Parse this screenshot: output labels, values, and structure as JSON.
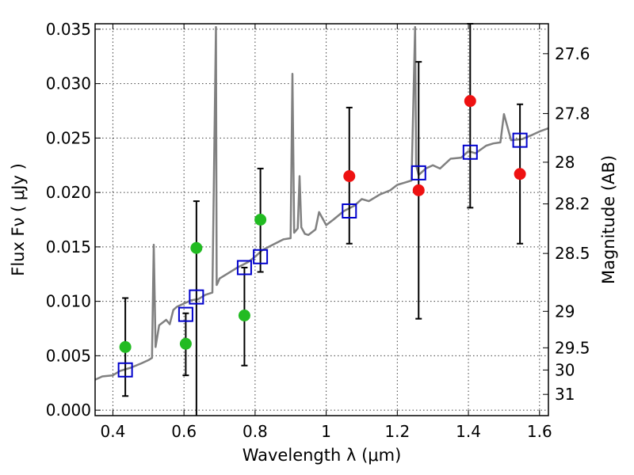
{
  "chart_data": {
    "type": "scatter",
    "xlabel": "Wavelength  λ (μm)",
    "ylabel": "Flux  Fν  ( μJy )",
    "ylabel_right": "Magnitude (AB)",
    "xlim": [
      0.35,
      1.625
    ],
    "ylim": [
      -0.0005,
      0.0355
    ],
    "x_ticks": [
      0.4,
      0.6,
      0.8,
      1.0,
      1.2,
      1.4,
      1.6
    ],
    "x_tick_labels": [
      "0.4",
      "0.6",
      "0.8",
      "1",
      "1.2",
      "1.4",
      "1.6"
    ],
    "y_ticks": [
      0.0,
      0.005,
      0.01,
      0.015,
      0.02,
      0.025,
      0.03,
      0.035
    ],
    "y_tick_labels": [
      "0.000",
      "0.005",
      "0.010",
      "0.015",
      "0.020",
      "0.025",
      "0.030",
      "0.035"
    ],
    "right_ticks": [
      {
        "label": "27.6",
        "flux": 0.03275
      },
      {
        "label": "27.8",
        "flux": 0.02725
      },
      {
        "label": "28",
        "flux": 0.02278
      },
      {
        "label": "28.2",
        "flux": 0.01895
      },
      {
        "label": "28.5",
        "flux": 0.0144
      },
      {
        "label": "29",
        "flux": 0.00908
      },
      {
        "label": "29.5",
        "flux": 0.00573
      },
      {
        "label": "30",
        "flux": 0.00369
      },
      {
        "label": "31",
        "flux": 0.00145
      }
    ],
    "grid": true,
    "colors": {
      "model": "#808080",
      "green": "#22bb22",
      "red": "#ee1111",
      "box": "#0000cc",
      "errorbar": "#000000"
    },
    "series": [
      {
        "marker": "line",
        "x": [
          0.35,
          0.37,
          0.4,
          0.42,
          0.45,
          0.48,
          0.5,
          0.51,
          0.515,
          0.52,
          0.53,
          0.55,
          0.56,
          0.57,
          0.58,
          0.6,
          0.62,
          0.64,
          0.66,
          0.68,
          0.69,
          0.692,
          0.695,
          0.7,
          0.72,
          0.75,
          0.78,
          0.8,
          0.82,
          0.85,
          0.88,
          0.9,
          0.905,
          0.91,
          0.92,
          0.925,
          0.93,
          0.94,
          0.95,
          0.97,
          0.98,
          1.0,
          1.02,
          1.05,
          1.08,
          1.1,
          1.12,
          1.15,
          1.18,
          1.2,
          1.22,
          1.24,
          1.25,
          1.253,
          1.26,
          1.28,
          1.3,
          1.32,
          1.35,
          1.38,
          1.4,
          1.42,
          1.45,
          1.47,
          1.49,
          1.5,
          1.52,
          1.55,
          1.58,
          1.6,
          1.625
        ],
        "y": [
          0.0028,
          0.0031,
          0.0032,
          0.0036,
          0.0039,
          0.0043,
          0.0046,
          0.0048,
          0.0152,
          0.0058,
          0.0078,
          0.0083,
          0.0079,
          0.0092,
          0.0095,
          0.0098,
          0.0101,
          0.0102,
          0.0106,
          0.0108,
          0.0352,
          0.0115,
          0.0117,
          0.0121,
          0.0125,
          0.0131,
          0.0136,
          0.0141,
          0.0147,
          0.0152,
          0.0157,
          0.0158,
          0.0309,
          0.0163,
          0.0167,
          0.0215,
          0.0168,
          0.0162,
          0.0161,
          0.0166,
          0.0182,
          0.017,
          0.0175,
          0.0183,
          0.0188,
          0.0194,
          0.0192,
          0.0198,
          0.0202,
          0.0207,
          0.0209,
          0.0211,
          0.0352,
          0.0225,
          0.0216,
          0.0222,
          0.0225,
          0.0222,
          0.0231,
          0.0232,
          0.0238,
          0.0236,
          0.0243,
          0.0245,
          0.0246,
          0.0272,
          0.0248,
          0.0249,
          0.0253,
          0.0256,
          0.0259
        ]
      },
      {
        "marker": "circle",
        "color": "#22bb22",
        "x": [
          0.435,
          0.605,
          0.635,
          0.77,
          0.815
        ],
        "y": [
          0.0058,
          0.0061,
          0.0149,
          0.0087,
          0.0175
        ]
      },
      {
        "marker": "circle",
        "color": "#ee1111",
        "x": [
          1.065,
          1.26,
          1.405,
          1.545
        ],
        "y": [
          0.0215,
          0.0202,
          0.0284,
          0.0217
        ]
      },
      {
        "marker": "square",
        "color": "#0000cc",
        "x": [
          0.435,
          0.605,
          0.635,
          0.77,
          0.815,
          1.065,
          1.26,
          1.405,
          1.545
        ],
        "y": [
          0.0037,
          0.0088,
          0.0104,
          0.0131,
          0.0141,
          0.0183,
          0.0218,
          0.0237,
          0.0248
        ],
        "errors": [
          {
            "x": 0.435,
            "low": 0.0013,
            "high": 0.0103
          },
          {
            "x": 0.605,
            "low": 0.0032,
            "high": 0.0089
          },
          {
            "x": 0.635,
            "low": null,
            "high": 0.0192
          },
          {
            "x": 0.77,
            "low": 0.0041,
            "high": 0.0131
          },
          {
            "x": 0.815,
            "low": 0.0127,
            "high": 0.0222
          },
          {
            "x": 1.065,
            "low": 0.0153,
            "high": 0.0278
          },
          {
            "x": 1.26,
            "low": 0.0084,
            "high": 0.032
          },
          {
            "x": 1.405,
            "low": 0.0186,
            "high": 0.0355
          },
          {
            "x": 1.545,
            "low": 0.0153,
            "high": 0.0281
          }
        ]
      }
    ]
  }
}
